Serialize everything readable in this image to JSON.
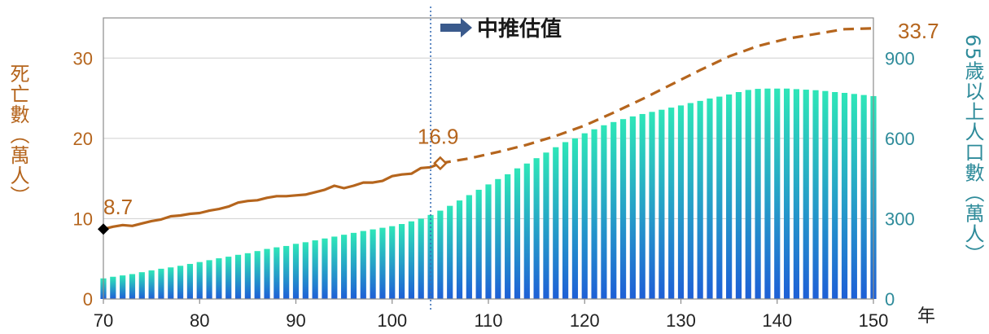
{
  "chart_data": {
    "type": "bar+line",
    "title": "",
    "colors": {
      "line": "#B5651D",
      "left_axis_text": "#B5651D",
      "right_axis_text": "#2E8B9A",
      "bar_top": "#2EE6B8",
      "bar_bottom": "#1E5FD6",
      "divider": "#3A6FB5",
      "arrow": "#3A5A8C"
    },
    "x_axis": {
      "min": 70,
      "max": 150,
      "ticks": [
        70,
        80,
        90,
        100,
        110,
        120,
        130,
        140,
        150
      ],
      "unit_label": "年"
    },
    "y_left": {
      "label": "死亡數（萬人）",
      "min": 0,
      "max": 35,
      "ticks": [
        0,
        10,
        20,
        30
      ]
    },
    "y_right": {
      "label": "65歲以上人口數（萬人）",
      "min": 0,
      "max": 1050,
      "ticks": [
        0,
        300,
        600,
        900
      ]
    },
    "grid": true,
    "projection_start": 104,
    "projection_label": "中推估值",
    "annotations": [
      {
        "x": 70,
        "value": "8.7"
      },
      {
        "x": 105,
        "value": "16.9"
      },
      {
        "x": 150,
        "value": "33.7"
      }
    ],
    "deaths_actual": {
      "name": "",
      "x": [
        70,
        71,
        72,
        73,
        74,
        75,
        76,
        77,
        78,
        79,
        80,
        81,
        82,
        83,
        84,
        85,
        86,
        87,
        88,
        89,
        90,
        91,
        92,
        93,
        94,
        95,
        96,
        97,
        98,
        99,
        100,
        101,
        102,
        103,
        104,
        105
      ],
      "y": [
        8.7,
        9.0,
        9.2,
        9.1,
        9.4,
        9.7,
        9.9,
        10.3,
        10.4,
        10.6,
        10.7,
        11.0,
        11.2,
        11.5,
        12.0,
        12.2,
        12.3,
        12.6,
        12.8,
        12.8,
        12.9,
        13.0,
        13.3,
        13.6,
        14.1,
        13.8,
        14.1,
        14.5,
        14.5,
        14.7,
        15.3,
        15.5,
        15.6,
        16.3,
        16.4,
        16.9
      ]
    },
    "deaths_projected": {
      "name": "",
      "x": [
        105,
        108,
        111,
        114,
        117,
        120,
        123,
        126,
        129,
        132,
        135,
        138,
        141,
        144,
        147,
        150
      ],
      "y": [
        16.9,
        17.5,
        18.3,
        19.2,
        20.3,
        21.6,
        23.2,
        24.9,
        26.7,
        28.5,
        30.2,
        31.5,
        32.4,
        33.0,
        33.6,
        33.7
      ]
    },
    "pop65_bars": {
      "name": "",
      "x": [
        70,
        71,
        72,
        73,
        74,
        75,
        76,
        77,
        78,
        79,
        80,
        81,
        82,
        83,
        84,
        85,
        86,
        87,
        88,
        89,
        90,
        91,
        92,
        93,
        94,
        95,
        96,
        97,
        98,
        99,
        100,
        101,
        102,
        103,
        104,
        105,
        106,
        107,
        108,
        109,
        110,
        111,
        112,
        113,
        114,
        115,
        116,
        117,
        118,
        119,
        120,
        121,
        122,
        123,
        124,
        125,
        126,
        127,
        128,
        129,
        130,
        131,
        132,
        133,
        134,
        135,
        136,
        137,
        138,
        139,
        140,
        141,
        142,
        143,
        144,
        145,
        146,
        147,
        148,
        149,
        150
      ],
      "values": [
        77,
        83,
        88,
        93,
        100,
        107,
        113,
        118,
        124,
        131,
        138,
        145,
        152,
        158,
        165,
        171,
        179,
        187,
        193,
        198,
        206,
        212,
        219,
        226,
        233,
        240,
        247,
        254,
        260,
        266,
        272,
        280,
        290,
        300,
        314,
        330,
        348,
        368,
        388,
        408,
        428,
        448,
        466,
        488,
        506,
        526,
        547,
        567,
        586,
        600,
        619,
        634,
        649,
        661,
        672,
        682,
        691,
        699,
        707,
        715,
        723,
        732,
        740,
        749,
        756,
        764,
        773,
        781,
        785,
        786,
        786,
        786,
        784,
        782,
        780,
        777,
        773,
        770,
        766,
        762,
        758
      ]
    }
  }
}
